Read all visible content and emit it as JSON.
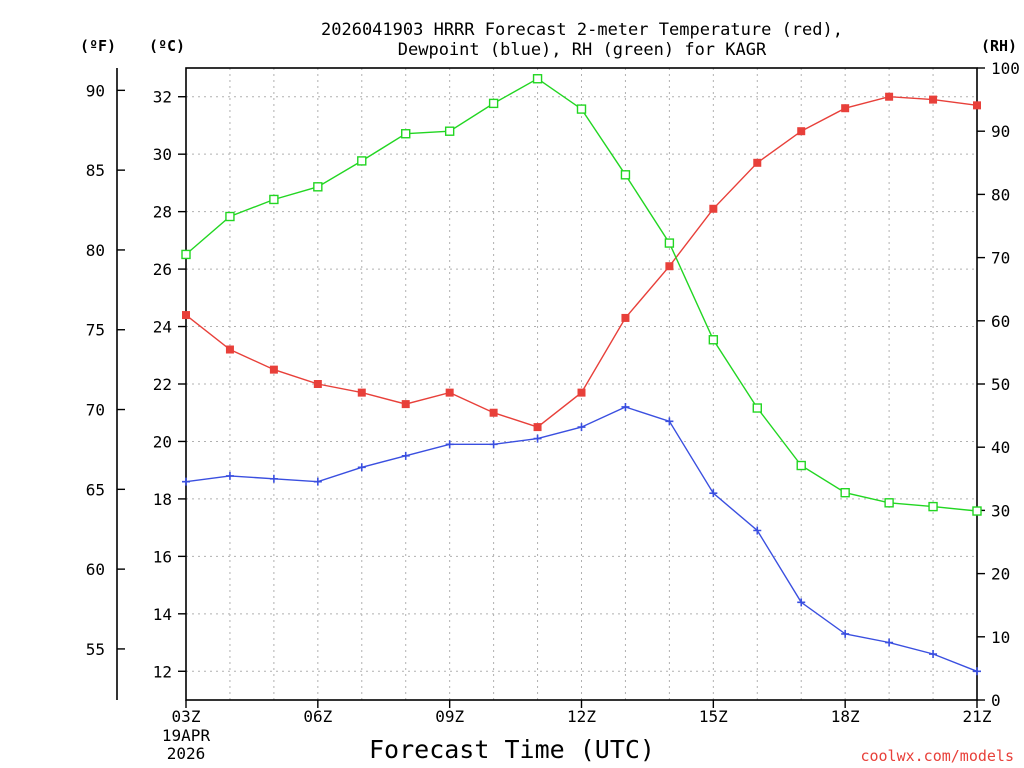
{
  "chart_data": {
    "type": "line",
    "title_line1": "2026041903 HRRR Forecast 2-meter Temperature (red),",
    "title_line2": "Dewpoint (blue), RH (green) for KAGR",
    "xlabel": "Forecast Time (UTC)",
    "date_label_line1": "19APR",
    "date_label_line2": "2026",
    "credit": "coolwx.com/models",
    "units": {
      "fahrenheit": "(ºF)",
      "celsius": "(ºC)",
      "rh": "(RH)"
    },
    "x_hours": [
      3,
      4,
      5,
      6,
      7,
      8,
      9,
      10,
      11,
      12,
      13,
      14,
      15,
      16,
      17,
      18,
      19,
      20,
      21
    ],
    "x_range": [
      3,
      21
    ],
    "x_ticks": [
      {
        "hour": 3,
        "label": "03Z"
      },
      {
        "hour": 6,
        "label": "06Z"
      },
      {
        "hour": 9,
        "label": "09Z"
      },
      {
        "hour": 12,
        "label": "12Z"
      },
      {
        "hour": 15,
        "label": "15Z"
      },
      {
        "hour": 18,
        "label": "18Z"
      },
      {
        "hour": 21,
        "label": "21Z"
      }
    ],
    "celsius_axis": {
      "range": [
        11.0,
        33.0
      ],
      "ticks": [
        12,
        14,
        16,
        18,
        20,
        22,
        24,
        26,
        28,
        30,
        32
      ]
    },
    "fahrenheit_ticks": [
      55,
      60,
      65,
      70,
      75,
      80,
      85,
      90
    ],
    "rh_axis": {
      "range": [
        0,
        100
      ],
      "ticks": [
        0,
        10,
        20,
        30,
        40,
        50,
        60,
        70,
        80,
        90,
        100
      ]
    },
    "series": [
      {
        "name": "Temperature",
        "color": "#e8403a",
        "marker": "filled-square",
        "axis": "celsius",
        "values": [
          24.4,
          23.2,
          22.5,
          22.0,
          21.7,
          21.3,
          21.7,
          21.0,
          20.5,
          21.7,
          24.3,
          26.1,
          28.1,
          29.7,
          30.8,
          31.6,
          32.0,
          31.9,
          31.7
        ]
      },
      {
        "name": "Dewpoint",
        "color": "#3a4fe0",
        "marker": "plus",
        "axis": "celsius",
        "values": [
          18.6,
          18.8,
          18.7,
          18.6,
          19.1,
          19.5,
          19.9,
          19.9,
          20.1,
          20.5,
          21.2,
          20.7,
          18.2,
          16.9,
          14.4,
          13.3,
          13.0,
          12.6,
          12.0
        ]
      },
      {
        "name": "RH",
        "color": "#22d622",
        "marker": "open-square",
        "axis": "rh",
        "values": [
          70.5,
          76.5,
          79.2,
          81.2,
          85.3,
          89.6,
          90.0,
          94.4,
          98.3,
          93.5,
          83.1,
          72.3,
          57.0,
          46.2,
          37.1,
          32.8,
          31.2,
          30.6,
          29.9
        ]
      }
    ]
  }
}
